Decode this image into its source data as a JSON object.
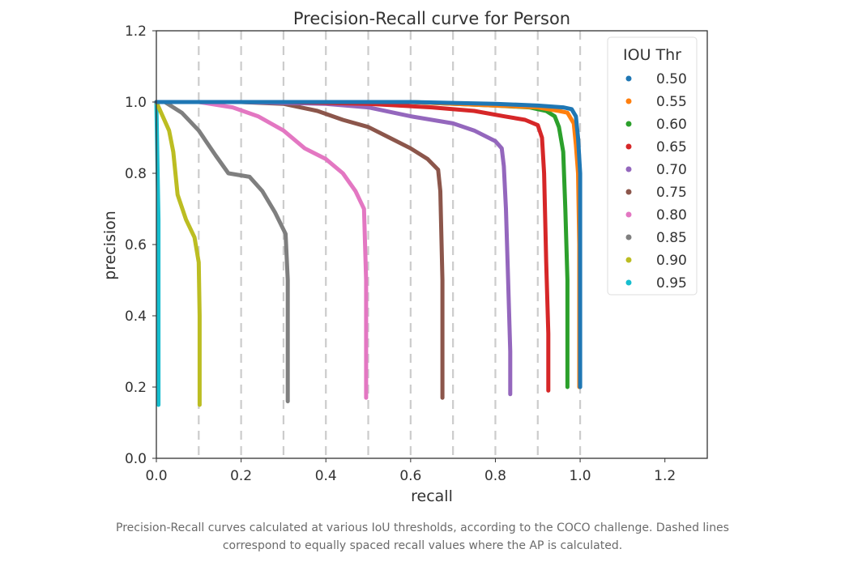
{
  "chart_data": {
    "type": "scatter",
    "title": "Precision-Recall curve for Person",
    "xlabel": "recall",
    "ylabel": "precision",
    "xlim": [
      0.0,
      1.3
    ],
    "ylim": [
      0.0,
      1.2
    ],
    "xticks": [
      "0.0",
      "0.2",
      "0.4",
      "0.6",
      "0.8",
      "1.0",
      "1.2"
    ],
    "yticks": [
      "0.0",
      "0.2",
      "0.4",
      "0.6",
      "0.8",
      "1.0",
      "1.2"
    ],
    "grid": false,
    "reference_lines": {
      "style": "dashed",
      "x": [
        0.1,
        0.2,
        0.3,
        0.4,
        0.5,
        0.6,
        0.7,
        0.8,
        0.9,
        1.0
      ]
    },
    "legend": {
      "title": "IOU Thr",
      "position": "top-right"
    },
    "series": [
      {
        "name": "0.50",
        "color": "#1f77b4",
        "points": [
          [
            0.0,
            1.0
          ],
          [
            0.2,
            1.0
          ],
          [
            0.4,
            1.0
          ],
          [
            0.6,
            1.0
          ],
          [
            0.8,
            0.995
          ],
          [
            0.9,
            0.99
          ],
          [
            0.96,
            0.985
          ],
          [
            0.98,
            0.98
          ],
          [
            0.99,
            0.96
          ],
          [
            0.995,
            0.9
          ],
          [
            1.0,
            0.8
          ],
          [
            1.0,
            0.5
          ],
          [
            1.0,
            0.2
          ]
        ]
      },
      {
        "name": "0.55",
        "color": "#ff7f0e",
        "points": [
          [
            0.0,
            1.0
          ],
          [
            0.3,
            1.0
          ],
          [
            0.6,
            1.0
          ],
          [
            0.8,
            0.99
          ],
          [
            0.9,
            0.985
          ],
          [
            0.95,
            0.975
          ],
          [
            0.97,
            0.97
          ],
          [
            0.985,
            0.94
          ],
          [
            0.99,
            0.88
          ],
          [
            0.995,
            0.8
          ],
          [
            0.998,
            0.6
          ],
          [
            0.998,
            0.4
          ],
          [
            0.998,
            0.2
          ]
        ]
      },
      {
        "name": "0.60",
        "color": "#2ca02c",
        "points": [
          [
            0.0,
            1.0
          ],
          [
            0.3,
            1.0
          ],
          [
            0.6,
            1.0
          ],
          [
            0.8,
            0.99
          ],
          [
            0.88,
            0.985
          ],
          [
            0.92,
            0.975
          ],
          [
            0.94,
            0.96
          ],
          [
            0.95,
            0.93
          ],
          [
            0.96,
            0.86
          ],
          [
            0.965,
            0.7
          ],
          [
            0.97,
            0.5
          ],
          [
            0.97,
            0.2
          ]
        ]
      },
      {
        "name": "0.65",
        "color": "#d62728",
        "points": [
          [
            0.0,
            1.0
          ],
          [
            0.3,
            1.0
          ],
          [
            0.5,
            0.995
          ],
          [
            0.65,
            0.985
          ],
          [
            0.75,
            0.975
          ],
          [
            0.82,
            0.96
          ],
          [
            0.87,
            0.95
          ],
          [
            0.9,
            0.935
          ],
          [
            0.91,
            0.9
          ],
          [
            0.915,
            0.8
          ],
          [
            0.92,
            0.55
          ],
          [
            0.925,
            0.35
          ],
          [
            0.925,
            0.19
          ]
        ]
      },
      {
        "name": "0.70",
        "color": "#9467bd",
        "points": [
          [
            0.0,
            1.0
          ],
          [
            0.2,
            1.0
          ],
          [
            0.4,
            0.995
          ],
          [
            0.5,
            0.985
          ],
          [
            0.6,
            0.96
          ],
          [
            0.7,
            0.94
          ],
          [
            0.75,
            0.92
          ],
          [
            0.8,
            0.89
          ],
          [
            0.815,
            0.87
          ],
          [
            0.82,
            0.82
          ],
          [
            0.825,
            0.7
          ],
          [
            0.83,
            0.5
          ],
          [
            0.835,
            0.3
          ],
          [
            0.835,
            0.18
          ]
        ]
      },
      {
        "name": "0.75",
        "color": "#8c564b",
        "points": [
          [
            0.0,
            1.0
          ],
          [
            0.2,
            1.0
          ],
          [
            0.3,
            0.995
          ],
          [
            0.38,
            0.975
          ],
          [
            0.44,
            0.95
          ],
          [
            0.5,
            0.93
          ],
          [
            0.55,
            0.9
          ],
          [
            0.6,
            0.87
          ],
          [
            0.64,
            0.84
          ],
          [
            0.665,
            0.81
          ],
          [
            0.67,
            0.75
          ],
          [
            0.675,
            0.5
          ],
          [
            0.675,
            0.3
          ],
          [
            0.675,
            0.17
          ]
        ]
      },
      {
        "name": "0.80",
        "color": "#e377c2",
        "points": [
          [
            0.05,
            1.0
          ],
          [
            0.1,
            1.0
          ],
          [
            0.18,
            0.985
          ],
          [
            0.24,
            0.96
          ],
          [
            0.3,
            0.92
          ],
          [
            0.35,
            0.87
          ],
          [
            0.4,
            0.84
          ],
          [
            0.44,
            0.8
          ],
          [
            0.47,
            0.75
          ],
          [
            0.49,
            0.7
          ],
          [
            0.495,
            0.5
          ],
          [
            0.495,
            0.3
          ],
          [
            0.495,
            0.17
          ]
        ]
      },
      {
        "name": "0.85",
        "color": "#7f7f7f",
        "points": [
          [
            0.02,
            1.0
          ],
          [
            0.06,
            0.97
          ],
          [
            0.1,
            0.92
          ],
          [
            0.14,
            0.85
          ],
          [
            0.17,
            0.8
          ],
          [
            0.22,
            0.79
          ],
          [
            0.25,
            0.75
          ],
          [
            0.28,
            0.69
          ],
          [
            0.305,
            0.63
          ],
          [
            0.31,
            0.5
          ],
          [
            0.31,
            0.3
          ],
          [
            0.31,
            0.16
          ]
        ]
      },
      {
        "name": "0.90",
        "color": "#bcbd22",
        "points": [
          [
            0.0,
            1.0
          ],
          [
            0.03,
            0.92
          ],
          [
            0.04,
            0.86
          ],
          [
            0.05,
            0.74
          ],
          [
            0.07,
            0.67
          ],
          [
            0.09,
            0.62
          ],
          [
            0.1,
            0.55
          ],
          [
            0.102,
            0.4
          ],
          [
            0.102,
            0.25
          ],
          [
            0.102,
            0.15
          ]
        ]
      },
      {
        "name": "0.95",
        "color": "#17becf",
        "points": [
          [
            0.0,
            1.0
          ],
          [
            0.005,
            0.67
          ],
          [
            0.005,
            0.6
          ],
          [
            0.005,
            0.5
          ],
          [
            0.005,
            0.4
          ],
          [
            0.005,
            0.3
          ],
          [
            0.005,
            0.2
          ],
          [
            0.005,
            0.15
          ]
        ]
      }
    ]
  },
  "caption": {
    "line1": "Precision-Recall curves calculated at various IoU thresholds, according to the COCO challenge. Dashed lines",
    "line2": "correspond to equally spaced recall values where the AP is calculated."
  }
}
